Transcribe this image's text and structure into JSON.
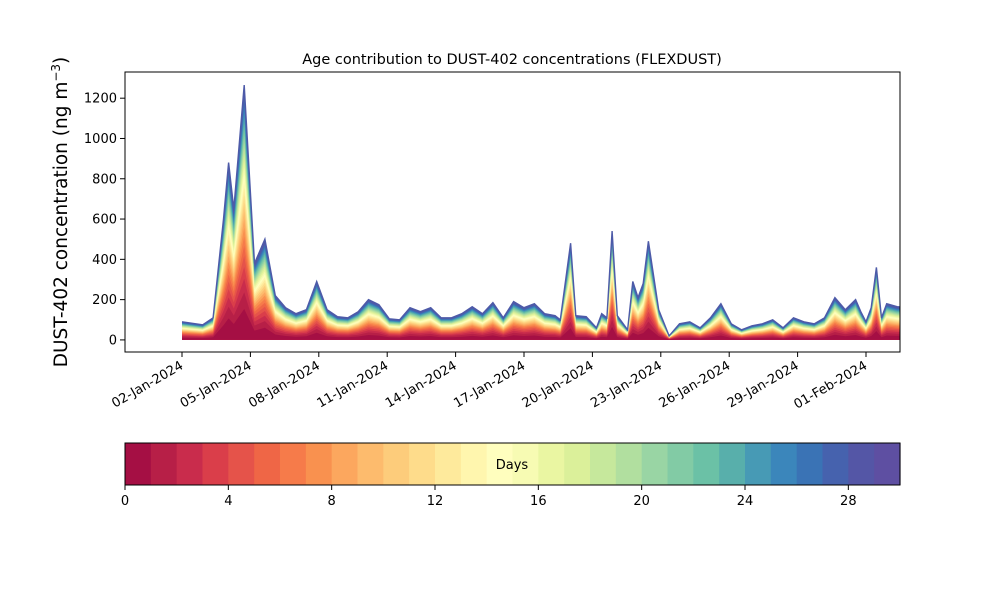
{
  "chart_data": {
    "type": "area",
    "title": "Age contribution to DUST-402 concentrations (FLEXDUST)",
    "ylabel": "DUST-402 concentration (ng m",
    "ylabel_sup": "−3",
    "ylabel_close": ")",
    "xlabel": "",
    "x_ticks": [
      "02-Jan-2024",
      "05-Jan-2024",
      "08-Jan-2024",
      "11-Jan-2024",
      "14-Jan-2024",
      "17-Jan-2024",
      "20-Jan-2024",
      "23-Jan-2024",
      "26-Jan-2024",
      "29-Jan-2024",
      "01-Feb-2024"
    ],
    "y_ticks": [
      0,
      200,
      400,
      600,
      800,
      1000,
      1200
    ],
    "ylim": [
      -60,
      1330
    ],
    "x_start": "2023-12-30",
    "x_end": "2024-02-01",
    "total_series": [
      {
        "x": "2023-12-30",
        "y": 90
      },
      {
        "x": "2023-12-31",
        "y": 75
      },
      {
        "x": "2023-12-31T12:00",
        "y": 110
      },
      {
        "x": "2024-01-01",
        "y": 600
      },
      {
        "x": "2024-01-01T06:00",
        "y": 880
      },
      {
        "x": "2024-01-01T12:00",
        "y": 650
      },
      {
        "x": "2024-01-02",
        "y": 1265
      },
      {
        "x": "2024-01-02T12:00",
        "y": 380
      },
      {
        "x": "2024-01-03",
        "y": 500
      },
      {
        "x": "2024-01-03T12:00",
        "y": 220
      },
      {
        "x": "2024-01-04",
        "y": 160
      },
      {
        "x": "2024-01-04T12:00",
        "y": 130
      },
      {
        "x": "2024-01-05",
        "y": 150
      },
      {
        "x": "2024-01-05T12:00",
        "y": 290
      },
      {
        "x": "2024-01-06",
        "y": 150
      },
      {
        "x": "2024-01-06T12:00",
        "y": 115
      },
      {
        "x": "2024-01-07",
        "y": 110
      },
      {
        "x": "2024-01-07T12:00",
        "y": 140
      },
      {
        "x": "2024-01-08",
        "y": 200
      },
      {
        "x": "2024-01-08T12:00",
        "y": 175
      },
      {
        "x": "2024-01-09",
        "y": 105
      },
      {
        "x": "2024-01-09T12:00",
        "y": 100
      },
      {
        "x": "2024-01-10",
        "y": 160
      },
      {
        "x": "2024-01-10T12:00",
        "y": 140
      },
      {
        "x": "2024-01-11",
        "y": 160
      },
      {
        "x": "2024-01-11T12:00",
        "y": 110
      },
      {
        "x": "2024-01-12",
        "y": 110
      },
      {
        "x": "2024-01-12T12:00",
        "y": 130
      },
      {
        "x": "2024-01-13",
        "y": 165
      },
      {
        "x": "2024-01-13T12:00",
        "y": 130
      },
      {
        "x": "2024-01-14",
        "y": 185
      },
      {
        "x": "2024-01-14T12:00",
        "y": 110
      },
      {
        "x": "2024-01-15",
        "y": 190
      },
      {
        "x": "2024-01-15T12:00",
        "y": 160
      },
      {
        "x": "2024-01-16",
        "y": 180
      },
      {
        "x": "2024-01-16T12:00",
        "y": 130
      },
      {
        "x": "2024-01-17",
        "y": 120
      },
      {
        "x": "2024-01-17T06:00",
        "y": 100
      },
      {
        "x": "2024-01-17T18:00",
        "y": 480
      },
      {
        "x": "2024-01-18",
        "y": 120
      },
      {
        "x": "2024-01-18T12:00",
        "y": 115
      },
      {
        "x": "2024-01-19",
        "y": 60
      },
      {
        "x": "2024-01-19T06:00",
        "y": 130
      },
      {
        "x": "2024-01-19T12:00",
        "y": 110
      },
      {
        "x": "2024-01-19T18:00",
        "y": 540
      },
      {
        "x": "2024-01-20",
        "y": 120
      },
      {
        "x": "2024-01-20T12:00",
        "y": 50
      },
      {
        "x": "2024-01-20T18:00",
        "y": 290
      },
      {
        "x": "2024-01-21",
        "y": 210
      },
      {
        "x": "2024-01-21T06:00",
        "y": 280
      },
      {
        "x": "2024-01-21T12:00",
        "y": 490
      },
      {
        "x": "2024-01-22",
        "y": 150
      },
      {
        "x": "2024-01-22T12:00",
        "y": 20
      },
      {
        "x": "2024-01-23",
        "y": 80
      },
      {
        "x": "2024-01-23T12:00",
        "y": 90
      },
      {
        "x": "2024-01-24",
        "y": 60
      },
      {
        "x": "2024-01-24T12:00",
        "y": 110
      },
      {
        "x": "2024-01-25",
        "y": 180
      },
      {
        "x": "2024-01-25T12:00",
        "y": 80
      },
      {
        "x": "2024-01-26",
        "y": 50
      },
      {
        "x": "2024-01-26T12:00",
        "y": 70
      },
      {
        "x": "2024-01-27",
        "y": 80
      },
      {
        "x": "2024-01-27T12:00",
        "y": 100
      },
      {
        "x": "2024-01-28",
        "y": 60
      },
      {
        "x": "2024-01-28T12:00",
        "y": 110
      },
      {
        "x": "2024-01-29",
        "y": 90
      },
      {
        "x": "2024-01-29T12:00",
        "y": 80
      },
      {
        "x": "2024-01-30",
        "y": 110
      },
      {
        "x": "2024-01-30T12:00",
        "y": 210
      },
      {
        "x": "2024-01-31",
        "y": 150
      },
      {
        "x": "2024-01-31T12:00",
        "y": 200
      },
      {
        "x": "2024-01-31T18:00",
        "y": 140
      },
      {
        "x": "2024-02-01",
        "y": 90
      },
      {
        "x": "2024-02-01T06:00",
        "y": 160
      },
      {
        "x": "2024-02-01T12:00",
        "y": 360
      },
      {
        "x": "2024-02-01T18:00",
        "y": 110
      },
      {
        "x": "2024-02-02",
        "y": 180
      },
      {
        "x": "2024-02-02T12:00",
        "y": 165
      },
      {
        "x": "2024-02-03",
        "y": 160
      },
      {
        "x": "2024-02-03T12:00",
        "y": 185
      }
    ],
    "colorbar": {
      "label": "Days",
      "min": 0,
      "max": 30,
      "ticks": [
        0,
        4,
        8,
        12,
        16,
        20,
        24,
        28
      ],
      "colors": [
        "#a50f44",
        "#b71f47",
        "#c92c4c",
        "#da3e4a",
        "#e5534a",
        "#ef6646",
        "#f67b4a",
        "#f9914f",
        "#fca75e",
        "#fdbb6d",
        "#fdcc7b",
        "#fedc8b",
        "#feea9c",
        "#fff6ae",
        "#fffebe",
        "#f7fbb3",
        "#eaf6a2",
        "#dbf09a",
        "#c6e89c",
        "#b1df9f",
        "#99d5a4",
        "#82cba5",
        "#6bc1a6",
        "#58afab",
        "#479ab5",
        "#3b86bb",
        "#3a73b5",
        "#4662ae",
        "#5456a6",
        "#5e4fa2"
      ]
    }
  }
}
